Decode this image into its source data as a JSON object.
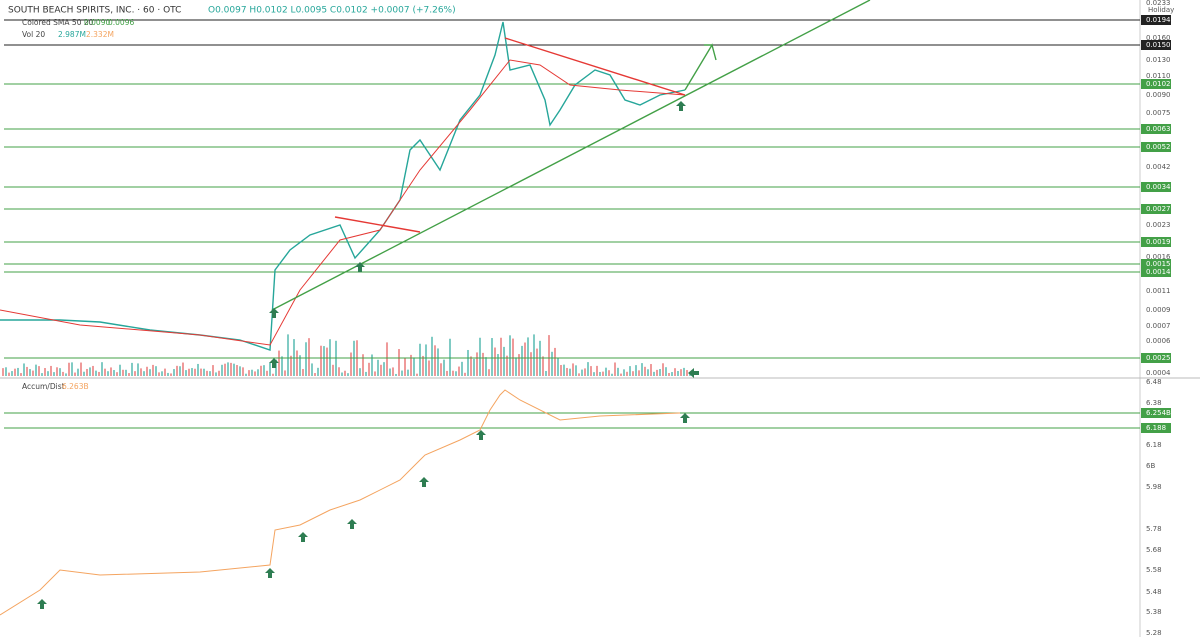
{
  "header": {
    "symbol": "SOUTH BEACH SPIRITS, INC. · 60 · OTC",
    "ohlc": "O0.0097 H0.0102 L0.0095 C0.0102 +0.0007 (+7.26%)",
    "status": "Holiday"
  },
  "legend": {
    "sma": "Colored SMA 50 20",
    "sma_a": "0.0090",
    "sma_b": "0.0096",
    "vol": "Vol 20",
    "vol_a": "2.987M",
    "vol_b": "2.332M",
    "accum": "Accum/Dist",
    "accum_v": "6.263B"
  },
  "price_axis": [
    "0.0233",
    "0.0194",
    "0.0160",
    "0.0150",
    "0.0130",
    "0.0110",
    "0.0102",
    "0.0090",
    "0.0075",
    "0.0063",
    "0.0052",
    "0.0042",
    "0.0034",
    "0.0027",
    "0.0023",
    "0.0019",
    "0.0016",
    "0.0015",
    "0.0014",
    "0.0011",
    "0.0009",
    "0.0007",
    "0.0006",
    "0.0025",
    "0.0004"
  ],
  "accum_axis": [
    "6.48",
    "6.38",
    "6.254B",
    "6.188",
    "6.18",
    "6B",
    "5.98",
    "5.78",
    "5.68",
    "5.58",
    "5.48",
    "5.38",
    "5.28"
  ]
}
